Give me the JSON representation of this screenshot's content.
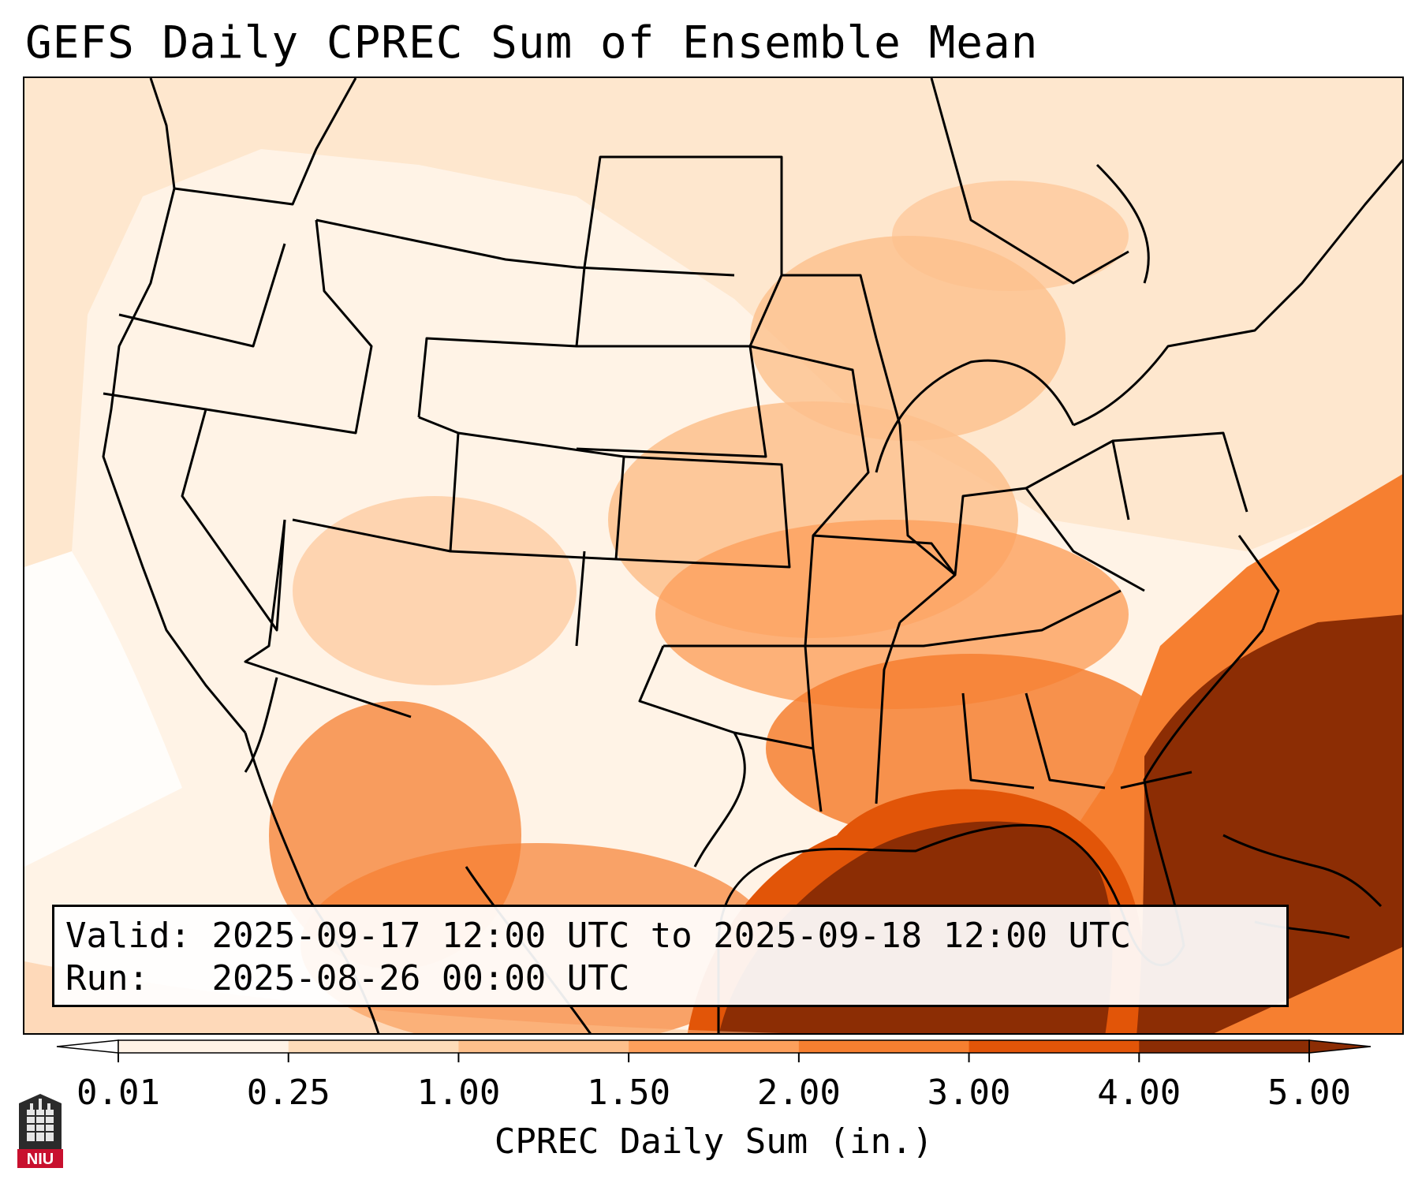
{
  "title": "GEFS Daily CPREC Sum of Ensemble Mean",
  "info": {
    "valid_label": "Valid:",
    "valid_value": "2025-09-17 12:00 UTC to 2025-09-18 12:00 UTC",
    "run_label": "Run:",
    "run_value": "2025-08-26 00:00 UTC"
  },
  "colorbar": {
    "label": "CPREC Daily Sum (in.)",
    "ticks": [
      "0.01",
      "0.25",
      "1.00",
      "1.50",
      "2.00",
      "3.00",
      "4.00",
      "5.00"
    ],
    "colors": [
      "#ffffff",
      "#fff3e6",
      "#fddcb9",
      "#fdc08c",
      "#fda05c",
      "#f67f30",
      "#e25508",
      "#8c2d04"
    ],
    "extend": "both"
  },
  "logo": {
    "text": "NIU"
  }
}
